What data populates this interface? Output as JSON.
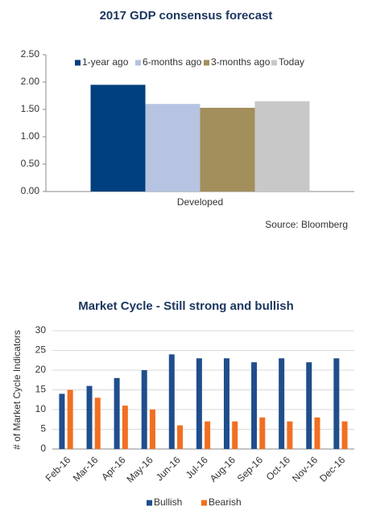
{
  "chart_data": [
    {
      "type": "bar",
      "title": "2017 GDP consensus forecast",
      "categories": [
        "Developed"
      ],
      "series": [
        {
          "name": "1-year ago",
          "color": "#003f7d",
          "values": [
            1.95
          ]
        },
        {
          "name": "6-months ago",
          "color": "#b6c4e1",
          "values": [
            1.6
          ]
        },
        {
          "name": "3-months ago",
          "color": "#a38f5c",
          "values": [
            1.53
          ]
        },
        {
          "name": "Today",
          "color": "#c8c8c8",
          "values": [
            1.65
          ]
        }
      ],
      "ylim": [
        0,
        2.5
      ],
      "yticks": [
        {
          "value": 0,
          "label": "0.00"
        },
        {
          "value": 0.5,
          "label": "0.50"
        },
        {
          "value": 1,
          "label": "1.00"
        },
        {
          "value": 1.5,
          "label": "1.50"
        },
        {
          "value": 2,
          "label": "2.00"
        },
        {
          "value": 2.5,
          "label": "2.50"
        }
      ],
      "grid": false,
      "legend": "top",
      "source": "Source: Bloomberg"
    },
    {
      "type": "bar",
      "title": "Market Cycle - Still strong and bullish",
      "y_label": "# of Market Cycle Indicators",
      "categories": [
        "Feb-16",
        "Mar-16",
        "Apr-16",
        "May-16",
        "Jun-16",
        "Jul-16",
        "Aug-16",
        "Sep-16",
        "Oct-16",
        "Nov-16",
        "Dec-16"
      ],
      "series": [
        {
          "name": "Bullish",
          "color": "#1f4e8c",
          "values": [
            14,
            16,
            18,
            20,
            24,
            23,
            23,
            22,
            23,
            22,
            23
          ]
        },
        {
          "name": "Bearish",
          "color": "#f26f21",
          "values": [
            15,
            13,
            11,
            10,
            6,
            7,
            7,
            8,
            7,
            8,
            7
          ]
        }
      ],
      "ylim": [
        0,
        30
      ],
      "yticks": [
        0,
        5,
        10,
        15,
        20,
        25,
        30
      ],
      "grid": true,
      "legend": "bottom"
    }
  ]
}
